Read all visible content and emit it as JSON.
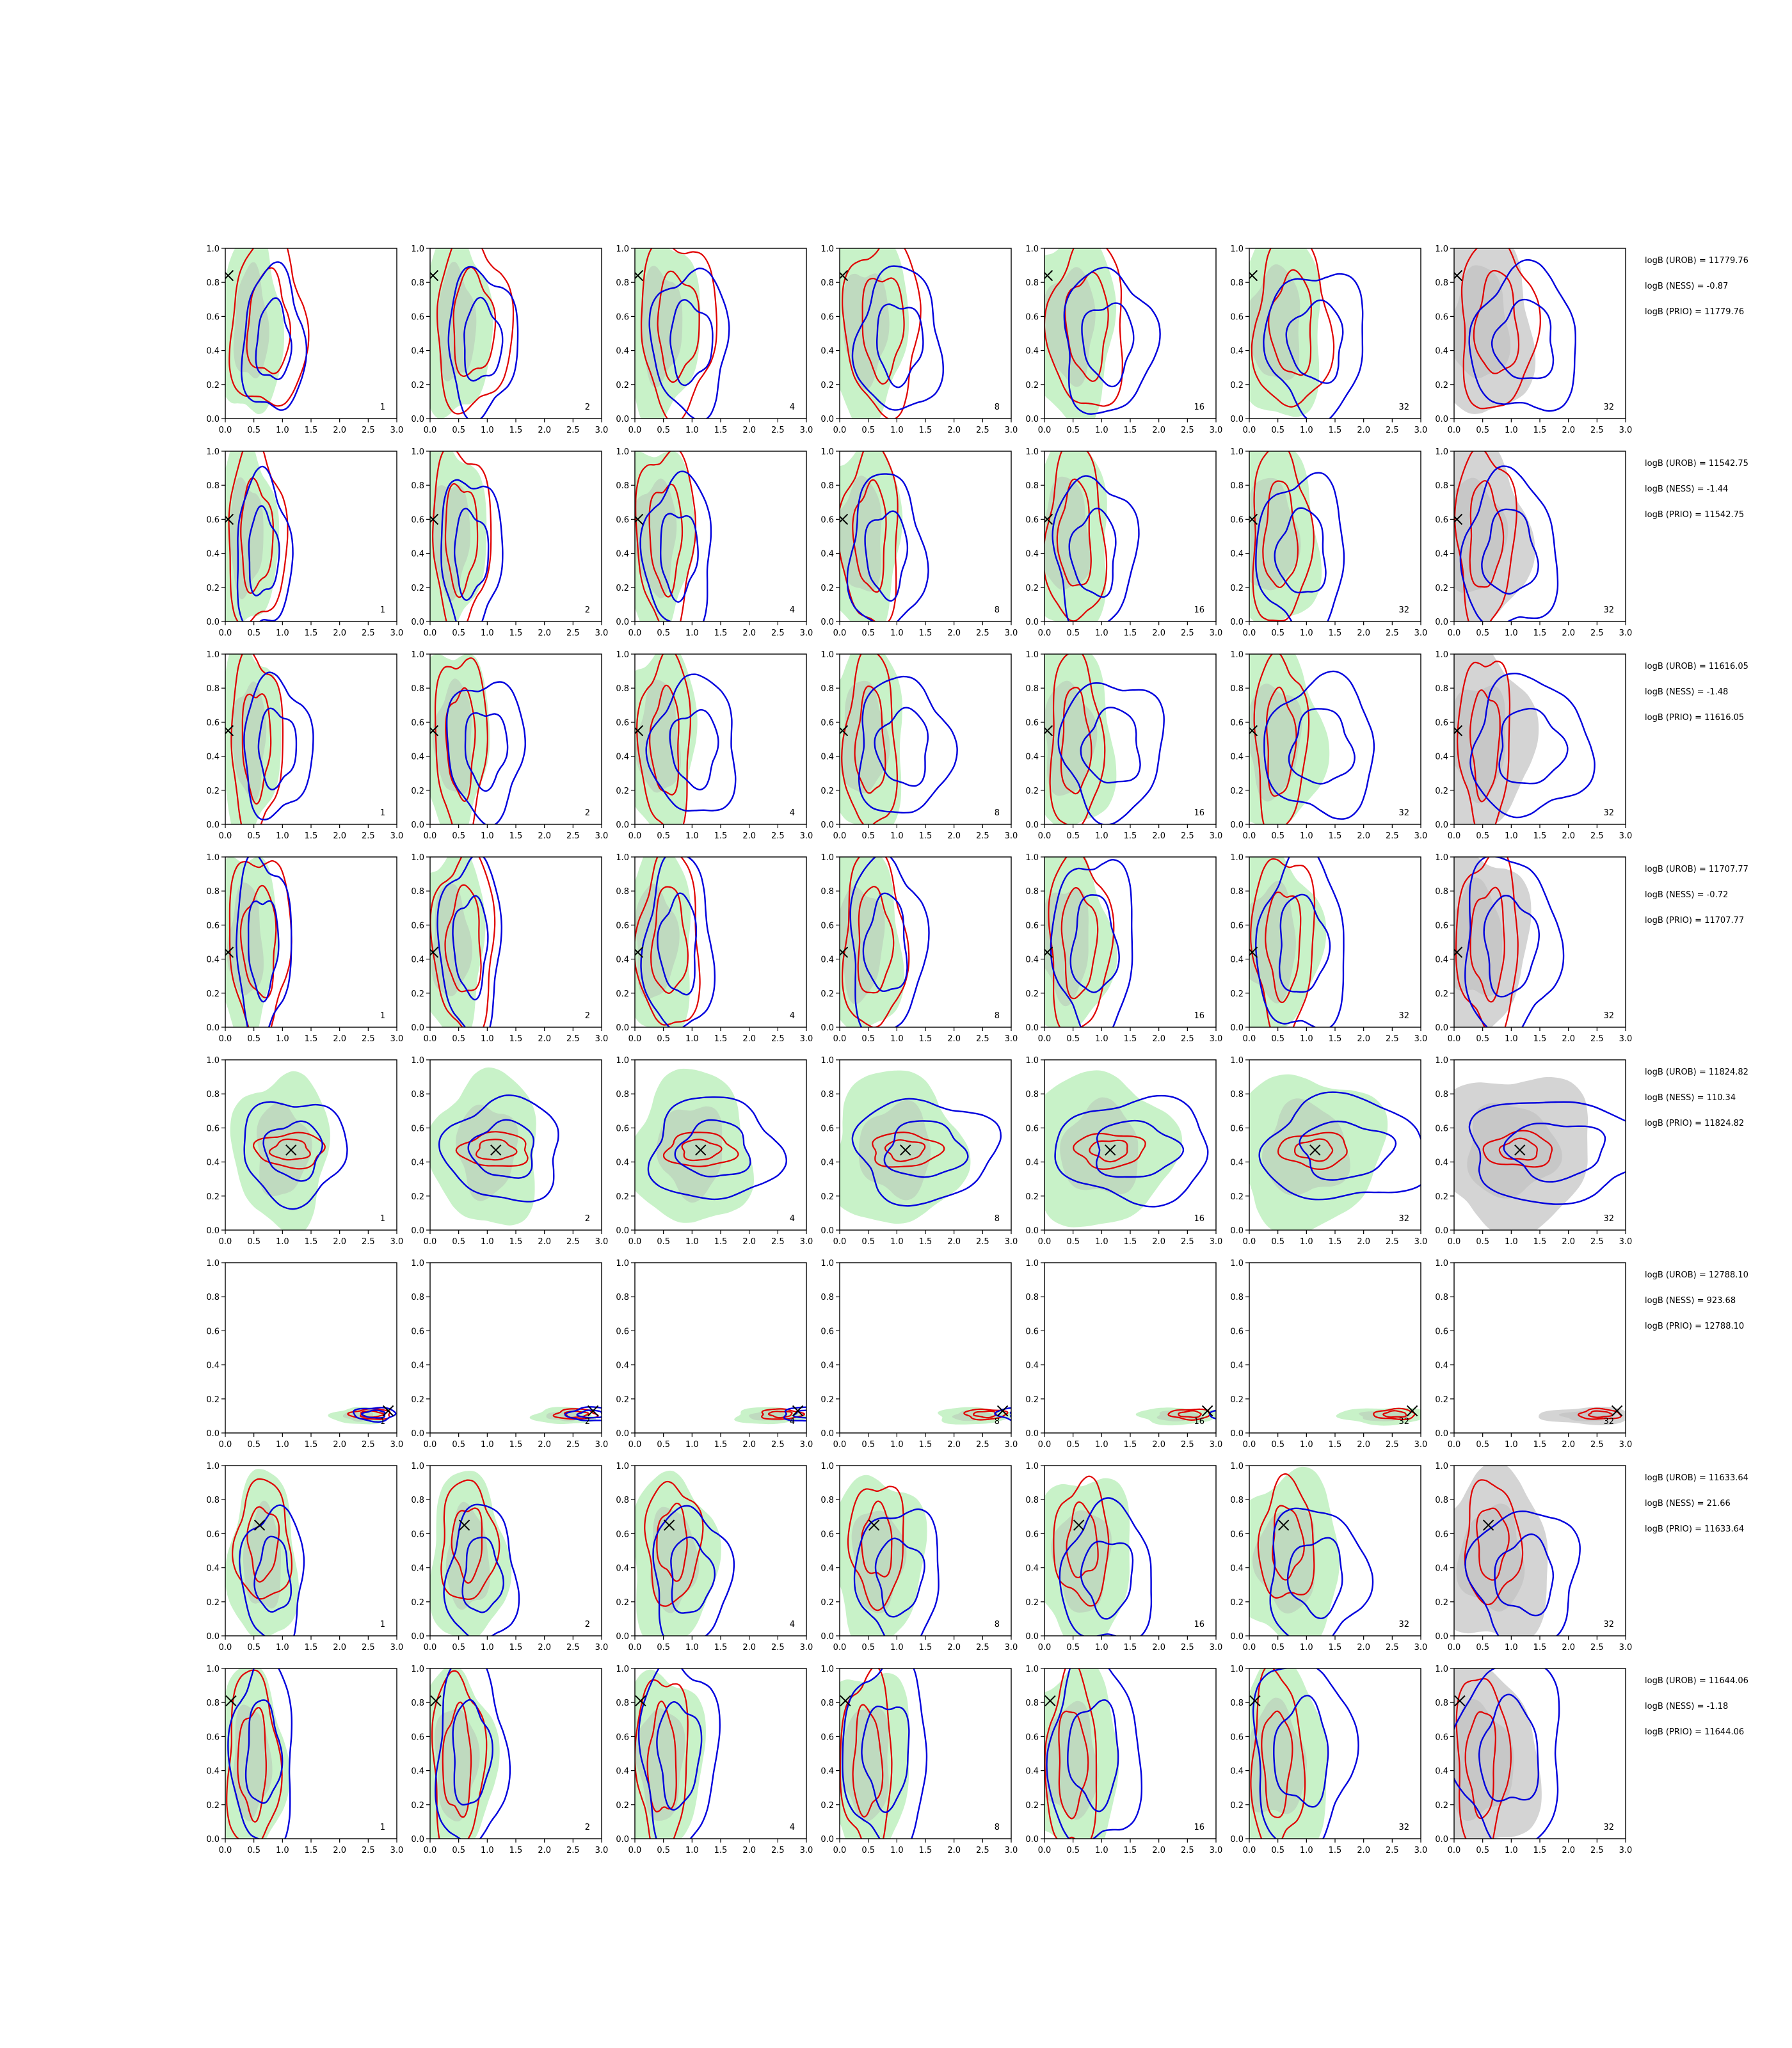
{
  "chart_data": {
    "type": "contour-grid",
    "xlim": [
      0,
      3
    ],
    "ylim": [
      0,
      1
    ],
    "x_ticks": [
      "0.0",
      "0.5",
      "1.0",
      "1.5",
      "2.0",
      "2.5",
      "3.0"
    ],
    "y_ticks": [
      "0.0",
      "0.2",
      "0.4",
      "0.6",
      "0.8",
      "1.0"
    ],
    "column_labels": [
      "1",
      "2",
      "4",
      "8",
      "16",
      "32",
      "32"
    ],
    "colors": {
      "green_fill": "#9be89b",
      "gray_fill": "#b0b0b0",
      "red": "#e00000",
      "blue": "#0000dd",
      "marker": "#000000"
    },
    "rows": [
      {
        "marker": [
          0.05,
          0.84
        ],
        "stats": [
          "logB (UROB) = 11779.76",
          "logB (NESS) = -0.87",
          "logB (PRIO) = 11779.76"
        ]
      },
      {
        "marker": [
          0.05,
          0.6
        ],
        "stats": [
          "logB (UROB) = 11542.75",
          "logB (NESS) = -1.44",
          "logB (PRIO) = 11542.75"
        ]
      },
      {
        "marker": [
          0.05,
          0.55
        ],
        "stats": [
          "logB (UROB) = 11616.05",
          "logB (NESS) = -1.48",
          "logB (PRIO) = 11616.05"
        ]
      },
      {
        "marker": [
          0.05,
          0.44
        ],
        "stats": [
          "logB (UROB) = 11707.77",
          "logB (NESS) = -0.72",
          "logB (PRIO) = 11707.77"
        ]
      },
      {
        "marker": [
          1.15,
          0.47
        ],
        "stats": [
          "logB (UROB) = 11824.82",
          "logB (NESS) = 110.34",
          "logB (PRIO) = 11824.82"
        ]
      },
      {
        "marker": [
          2.85,
          0.13
        ],
        "stats": [
          "logB (UROB) = 12788.10",
          "logB (NESS) = 923.68",
          "logB (PRIO) = 12788.10"
        ]
      },
      {
        "marker": [
          0.6,
          0.65
        ],
        "stats": [
          "logB (UROB) = 11633.64",
          "logB (NESS) = 21.66",
          "logB (PRIO) = 11633.64"
        ]
      },
      {
        "marker": [
          0.1,
          0.81
        ],
        "stats": [
          "logB (UROB) = 11644.06",
          "logB (NESS) = -1.18",
          "logB (PRIO) = 11644.06"
        ]
      }
    ]
  }
}
